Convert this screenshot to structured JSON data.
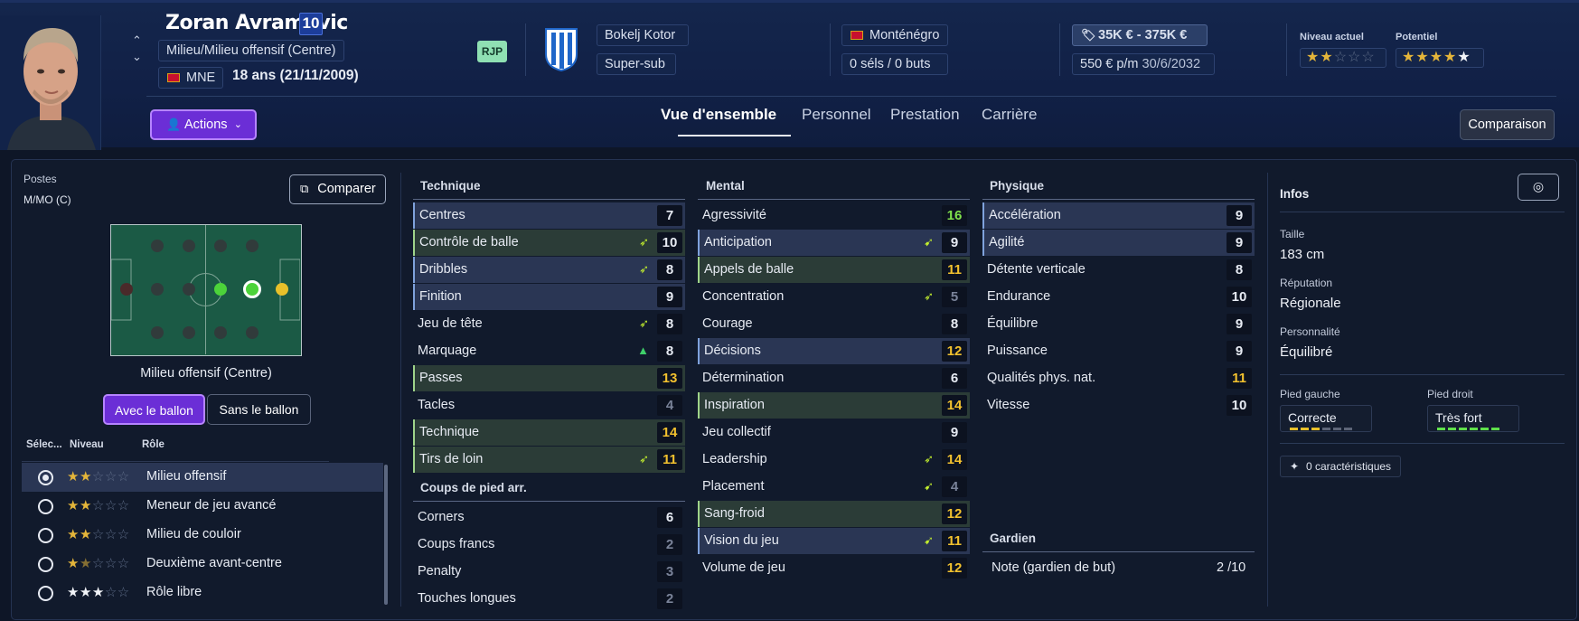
{
  "player": {
    "name": "Zoran Avramovic",
    "number": "10",
    "position": "Milieu/Milieu offensif (Centre)",
    "nation_code": "MNE",
    "age": "18 ans (21/11/2009)",
    "tag": "RJP"
  },
  "club": {
    "name": "Bokelj Kotor",
    "role": "Super-sub"
  },
  "nation": {
    "name": "Monténégro",
    "caps": "0 séls / 0 buts"
  },
  "contract": {
    "value": "35K € - 375K €",
    "wage": "550 € p/m",
    "expiry": "30/6/2032"
  },
  "ability": {
    "current_label": "Niveau actuel",
    "potential_label": "Potentiel",
    "current_stars": 2,
    "potential_stars": 4.5
  },
  "header": {
    "actions_label": "Actions",
    "compare_label": "Comparaison",
    "tabs": [
      "Vue d'ensemble",
      "Personnel",
      "Prestation",
      "Carrière"
    ]
  },
  "positions": {
    "title": "Postes",
    "code": "M/MO (C)",
    "compare_btn": "Comparer",
    "selected_position": "Milieu offensif (Centre)",
    "with_ball": "Avec le ballon",
    "without_ball": "Sans le ballon",
    "col_select": "Sélec...",
    "col_level": "Niveau",
    "col_role": "Rôle",
    "roles": [
      {
        "name": "Milieu offensif",
        "stars": 2,
        "selected": true
      },
      {
        "name": "Meneur de jeu avancé",
        "stars": 2,
        "selected": false
      },
      {
        "name": "Milieu de couloir",
        "stars": 2,
        "selected": false
      },
      {
        "name": "Deuxième avant-centre",
        "stars": 1.5,
        "selected": false
      },
      {
        "name": "Rôle libre",
        "stars": 3,
        "selected": false
      }
    ]
  },
  "technique": {
    "title": "Technique",
    "attrs": [
      {
        "name": "Centres",
        "value": "7",
        "hl": "blue"
      },
      {
        "name": "Contrôle de balle",
        "value": "10",
        "hl": "green",
        "icon": "➶"
      },
      {
        "name": "Dribbles",
        "value": "8",
        "hl": "blue",
        "icon": "➶"
      },
      {
        "name": "Finition",
        "value": "9",
        "hl": "blue"
      },
      {
        "name": "Jeu de tête",
        "value": "8",
        "icon": "➶"
      },
      {
        "name": "Marquage",
        "value": "8",
        "icon": "▲"
      },
      {
        "name": "Passes",
        "value": "13",
        "hl": "green",
        "tone": "hi"
      },
      {
        "name": "Tacles",
        "value": "4",
        "tone": "lo"
      },
      {
        "name": "Technique",
        "value": "14",
        "hl": "green",
        "tone": "hi"
      },
      {
        "name": "Tirs de loin",
        "value": "11",
        "hl": "green",
        "tone": "hi",
        "icon": "➶"
      }
    ]
  },
  "setpieces": {
    "title": "Coups de pied arr.",
    "attrs": [
      {
        "name": "Corners",
        "value": "6"
      },
      {
        "name": "Coups francs",
        "value": "2",
        "tone": "lo"
      },
      {
        "name": "Penalty",
        "value": "3",
        "tone": "lo"
      },
      {
        "name": "Touches longues",
        "value": "2",
        "tone": "lo"
      }
    ]
  },
  "mental": {
    "title": "Mental",
    "attrs": [
      {
        "name": "Agressivité",
        "value": "16",
        "tone": "vhi"
      },
      {
        "name": "Anticipation",
        "value": "9",
        "hl": "blue",
        "icon": "➹"
      },
      {
        "name": "Appels de balle",
        "value": "11",
        "hl": "green",
        "tone": "hi"
      },
      {
        "name": "Concentration",
        "value": "5",
        "tone": "lo",
        "icon": "➶"
      },
      {
        "name": "Courage",
        "value": "8"
      },
      {
        "name": "Décisions",
        "value": "12",
        "hl": "blue",
        "tone": "hi"
      },
      {
        "name": "Détermination",
        "value": "6"
      },
      {
        "name": "Inspiration",
        "value": "14",
        "hl": "green",
        "tone": "hi"
      },
      {
        "name": "Jeu collectif",
        "value": "9"
      },
      {
        "name": "Leadership",
        "value": "14",
        "tone": "hi",
        "icon": "➶"
      },
      {
        "name": "Placement",
        "value": "4",
        "tone": "lo",
        "icon": "➹"
      },
      {
        "name": "Sang-froid",
        "value": "12",
        "hl": "green",
        "tone": "hi"
      },
      {
        "name": "Vision du jeu",
        "value": "11",
        "hl": "blue",
        "tone": "hi",
        "icon": "➹"
      },
      {
        "name": "Volume de jeu",
        "value": "12",
        "tone": "hi"
      }
    ]
  },
  "physique": {
    "title": "Physique",
    "attrs": [
      {
        "name": "Accélération",
        "value": "9",
        "hl": "blue"
      },
      {
        "name": "Agilité",
        "value": "9",
        "hl": "blue"
      },
      {
        "name": "Détente verticale",
        "value": "8"
      },
      {
        "name": "Endurance",
        "value": "10"
      },
      {
        "name": "Équilibre",
        "value": "9"
      },
      {
        "name": "Puissance",
        "value": "9"
      },
      {
        "name": "Qualités phys. nat.",
        "value": "11",
        "tone": "hi"
      },
      {
        "name": "Vitesse",
        "value": "10"
      }
    ]
  },
  "goalkeeper": {
    "title": "Gardien",
    "label": "Note (gardien de but)",
    "value": "2 /10"
  },
  "infos": {
    "title": "Infos",
    "height_label": "Taille",
    "height": "183 cm",
    "reputation_label": "Réputation",
    "reputation": "Régionale",
    "personality_label": "Personnalité",
    "personality": "Équilibré",
    "left_foot_label": "Pied gauche",
    "left_foot": "Correcte",
    "left_foot_level": 3,
    "right_foot_label": "Pied droit",
    "right_foot": "Très fort",
    "right_foot_level": 6,
    "traits": "0 caractéristiques"
  },
  "colors": {
    "accent_purple": "#6b2ed6",
    "highlight_good": "#f2c12e",
    "highlight_great": "#7fe04c",
    "low": "#7a8399"
  }
}
